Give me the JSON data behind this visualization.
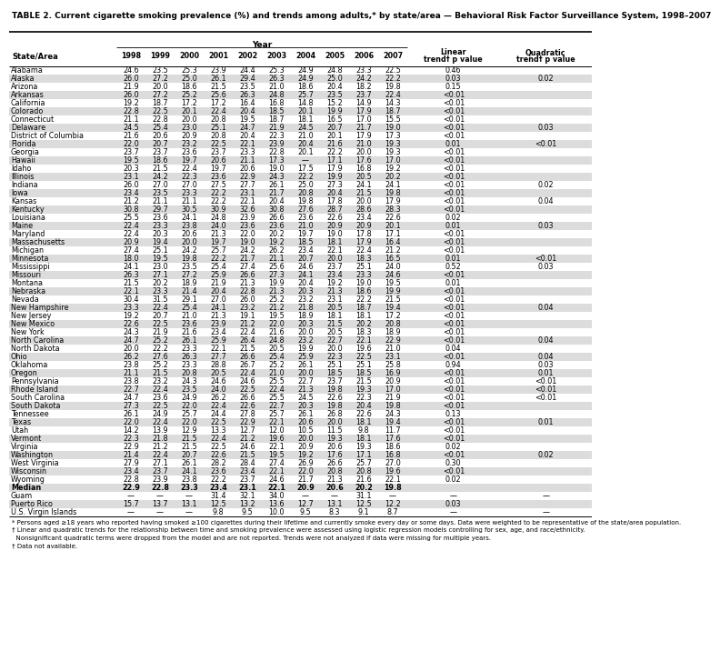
{
  "title": "TABLE 2. Current cigarette smoking prevalence (%) and trends among adults,* by state/area — Behavioral Risk Factor Surveillance System, 1998–2007",
  "col_headers": [
    "State/Area",
    "1998",
    "1999",
    "2000",
    "2001",
    "2002",
    "2003",
    "2004",
    "2005",
    "2006",
    "2007",
    "Linear\ntrend† p value",
    "Quadratic\ntrend† p value"
  ],
  "year_header": "Year",
  "rows": [
    [
      "Alabama",
      "24.6",
      "23.5",
      "25.3",
      "23.9",
      "24.4",
      "25.3",
      "24.9",
      "24.8",
      "23.3",
      "22.5",
      "0.46",
      ""
    ],
    [
      "Alaska",
      "26.0",
      "27.2",
      "25.0",
      "26.1",
      "29.4",
      "26.3",
      "24.9",
      "25.0",
      "24.2",
      "22.2",
      "0.03",
      "0.02"
    ],
    [
      "Arizona",
      "21.9",
      "20.0",
      "18.6",
      "21.5",
      "23.5",
      "21.0",
      "18.6",
      "20.4",
      "18.2",
      "19.8",
      "0.15",
      ""
    ],
    [
      "Arkansas",
      "26.0",
      "27.2",
      "25.2",
      "25.6",
      "26.3",
      "24.8",
      "25.7",
      "23.5",
      "23.7",
      "22.4",
      "<0.01",
      ""
    ],
    [
      "California",
      "19.2",
      "18.7",
      "17.2",
      "17.2",
      "16.4",
      "16.8",
      "14.8",
      "15.2",
      "14.9",
      "14.3",
      "<0.01",
      ""
    ],
    [
      "Colorado",
      "22.8",
      "22.5",
      "20.1",
      "22.4",
      "20.4",
      "18.5",
      "20.1",
      "19.9",
      "17.9",
      "18.7",
      "<0.01",
      ""
    ],
    [
      "Connecticut",
      "21.1",
      "22.8",
      "20.0",
      "20.8",
      "19.5",
      "18.7",
      "18.1",
      "16.5",
      "17.0",
      "15.5",
      "<0.01",
      ""
    ],
    [
      "Delaware",
      "24.5",
      "25.4",
      "23.0",
      "25.1",
      "24.7",
      "21.9",
      "24.5",
      "20.7",
      "21.7",
      "19.0",
      "<0.01",
      "0.03"
    ],
    [
      "District of Columbia",
      "21.6",
      "20.6",
      "20.9",
      "20.8",
      "20.4",
      "22.3",
      "21.0",
      "20.1",
      "17.9",
      "17.3",
      "<0.01",
      ""
    ],
    [
      "Florida",
      "22.0",
      "20.7",
      "23.2",
      "22.5",
      "22.1",
      "23.9",
      "20.4",
      "21.6",
      "21.0",
      "19.3",
      "0.01",
      "<0.01"
    ],
    [
      "Georgia",
      "23.7",
      "23.7",
      "23.6",
      "23.7",
      "23.3",
      "22.8",
      "20.1",
      "22.2",
      "20.0",
      "19.3",
      "<0.01",
      ""
    ],
    [
      "Hawaii",
      "19.5",
      "18.6",
      "19.7",
      "20.6",
      "21.1",
      "17.3",
      "—",
      "17.1",
      "17.6",
      "17.0",
      "<0.01",
      ""
    ],
    [
      "Idaho",
      "20.3",
      "21.5",
      "22.4",
      "19.7",
      "20.6",
      "19.0",
      "17.5",
      "17.9",
      "16.8",
      "19.2",
      "<0.01",
      ""
    ],
    [
      "Illinois",
      "23.1",
      "24.2",
      "22.3",
      "23.6",
      "22.9",
      "24.3",
      "22.2",
      "19.9",
      "20.5",
      "20.2",
      "<0.01",
      ""
    ],
    [
      "Indiana",
      "26.0",
      "27.0",
      "27.0",
      "27.5",
      "27.7",
      "26.1",
      "25.0",
      "27.3",
      "24.1",
      "24.1",
      "<0.01",
      "0.02"
    ],
    [
      "Iowa",
      "23.4",
      "23.5",
      "23.3",
      "22.2",
      "23.1",
      "21.7",
      "20.8",
      "20.4",
      "21.5",
      "19.8",
      "<0.01",
      ""
    ],
    [
      "Kansas",
      "21.2",
      "21.1",
      "21.1",
      "22.2",
      "22.1",
      "20.4",
      "19.8",
      "17.8",
      "20.0",
      "17.9",
      "<0.01",
      "0.04"
    ],
    [
      "Kentucky",
      "30.8",
      "29.7",
      "30.5",
      "30.9",
      "32.6",
      "30.8",
      "27.6",
      "28.7",
      "28.6",
      "28.3",
      "<0.01",
      ""
    ],
    [
      "Louisiana",
      "25.5",
      "23.6",
      "24.1",
      "24.8",
      "23.9",
      "26.6",
      "23.6",
      "22.6",
      "23.4",
      "22.6",
      "0.02",
      ""
    ],
    [
      "Maine",
      "22.4",
      "23.3",
      "23.8",
      "24.0",
      "23.6",
      "23.6",
      "21.0",
      "20.9",
      "20.9",
      "20.1",
      "0.01",
      "0.03"
    ],
    [
      "Maryland",
      "22.4",
      "20.3",
      "20.6",
      "21.3",
      "22.0",
      "20.2",
      "19.7",
      "19.0",
      "17.8",
      "17.1",
      "<0.01",
      ""
    ],
    [
      "Massachusetts",
      "20.9",
      "19.4",
      "20.0",
      "19.7",
      "19.0",
      "19.2",
      "18.5",
      "18.1",
      "17.9",
      "16.4",
      "<0.01",
      ""
    ],
    [
      "Michigan",
      "27.4",
      "25.1",
      "24.2",
      "25.7",
      "24.2",
      "26.2",
      "23.4",
      "22.1",
      "22.4",
      "21.2",
      "<0.01",
      ""
    ],
    [
      "Minnesota",
      "18.0",
      "19.5",
      "19.8",
      "22.2",
      "21.7",
      "21.1",
      "20.7",
      "20.0",
      "18.3",
      "16.5",
      "0.01",
      "<0.01"
    ],
    [
      "Mississippi",
      "24.1",
      "23.0",
      "23.5",
      "25.4",
      "27.4",
      "25.6",
      "24.6",
      "23.7",
      "25.1",
      "24.0",
      "0.52",
      "0.03"
    ],
    [
      "Missouri",
      "26.3",
      "27.1",
      "27.2",
      "25.9",
      "26.6",
      "27.3",
      "24.1",
      "23.4",
      "23.3",
      "24.6",
      "<0.01",
      ""
    ],
    [
      "Montana",
      "21.5",
      "20.2",
      "18.9",
      "21.9",
      "21.3",
      "19.9",
      "20.4",
      "19.2",
      "19.0",
      "19.5",
      "0.01",
      ""
    ],
    [
      "Nebraska",
      "22.1",
      "23.3",
      "21.4",
      "20.4",
      "22.8",
      "21.3",
      "20.3",
      "21.3",
      "18.6",
      "19.9",
      "<0.01",
      ""
    ],
    [
      "Nevada",
      "30.4",
      "31.5",
      "29.1",
      "27.0",
      "26.0",
      "25.2",
      "23.2",
      "23.1",
      "22.2",
      "21.5",
      "<0.01",
      ""
    ],
    [
      "New Hampshire",
      "23.3",
      "22.4",
      "25.4",
      "24.1",
      "23.2",
      "21.2",
      "21.8",
      "20.5",
      "18.7",
      "19.4",
      "<0.01",
      "0.04"
    ],
    [
      "New Jersey",
      "19.2",
      "20.7",
      "21.0",
      "21.3",
      "19.1",
      "19.5",
      "18.9",
      "18.1",
      "18.1",
      "17.2",
      "<0.01",
      ""
    ],
    [
      "New Mexico",
      "22.6",
      "22.5",
      "23.6",
      "23.9",
      "21.2",
      "22.0",
      "20.3",
      "21.5",
      "20.2",
      "20.8",
      "<0.01",
      ""
    ],
    [
      "New York",
      "24.3",
      "21.9",
      "21.6",
      "23.4",
      "22.4",
      "21.6",
      "20.0",
      "20.5",
      "18.3",
      "18.9",
      "<0.01",
      ""
    ],
    [
      "North Carolina",
      "24.7",
      "25.2",
      "26.1",
      "25.9",
      "26.4",
      "24.8",
      "23.2",
      "22.7",
      "22.1",
      "22.9",
      "<0.01",
      "0.04"
    ],
    [
      "North Dakota",
      "20.0",
      "22.2",
      "23.3",
      "22.1",
      "21.5",
      "20.5",
      "19.9",
      "20.0",
      "19.6",
      "21.0",
      "0.04",
      ""
    ],
    [
      "Ohio",
      "26.2",
      "27.6",
      "26.3",
      "27.7",
      "26.6",
      "25.4",
      "25.9",
      "22.3",
      "22.5",
      "23.1",
      "<0.01",
      "0.04"
    ],
    [
      "Oklahoma",
      "23.8",
      "25.2",
      "23.3",
      "28.8",
      "26.7",
      "25.2",
      "26.1",
      "25.1",
      "25.1",
      "25.8",
      "0.94",
      "0.03"
    ],
    [
      "Oregon",
      "21.1",
      "21.5",
      "20.8",
      "20.5",
      "22.4",
      "21.0",
      "20.0",
      "18.5",
      "18.5",
      "16.9",
      "<0.01",
      "0.01"
    ],
    [
      "Pennsylvania",
      "23.8",
      "23.2",
      "24.3",
      "24.6",
      "24.6",
      "25.5",
      "22.7",
      "23.7",
      "21.5",
      "20.9",
      "<0.01",
      "<0.01"
    ],
    [
      "Rhode Island",
      "22.7",
      "22.4",
      "23.5",
      "24.0",
      "22.5",
      "22.4",
      "21.3",
      "19.8",
      "19.3",
      "17.0",
      "<0.01",
      "<0.01"
    ],
    [
      "South Carolina",
      "24.7",
      "23.6",
      "24.9",
      "26.2",
      "26.6",
      "25.5",
      "24.5",
      "22.6",
      "22.3",
      "21.9",
      "<0.01",
      "<0.01"
    ],
    [
      "South Dakota",
      "27.3",
      "22.5",
      "22.0",
      "22.4",
      "22.6",
      "22.7",
      "20.3",
      "19.8",
      "20.4",
      "19.8",
      "<0.01",
      ""
    ],
    [
      "Tennessee",
      "26.1",
      "24.9",
      "25.7",
      "24.4",
      "27.8",
      "25.7",
      "26.1",
      "26.8",
      "22.6",
      "24.3",
      "0.13",
      ""
    ],
    [
      "Texas",
      "22.0",
      "22.4",
      "22.0",
      "22.5",
      "22.9",
      "22.1",
      "20.6",
      "20.0",
      "18.1",
      "19.4",
      "<0.01",
      "0.01"
    ],
    [
      "Utah",
      "14.2",
      "13.9",
      "12.9",
      "13.3",
      "12.7",
      "12.0",
      "10.5",
      "11.5",
      "9.8",
      "11.7",
      "<0.01",
      ""
    ],
    [
      "Vermont",
      "22.3",
      "21.8",
      "21.5",
      "22.4",
      "21.2",
      "19.6",
      "20.0",
      "19.3",
      "18.1",
      "17.6",
      "<0.01",
      ""
    ],
    [
      "Virginia",
      "22.9",
      "21.2",
      "21.5",
      "22.5",
      "24.6",
      "22.1",
      "20.9",
      "20.6",
      "19.3",
      "18.6",
      "0.02",
      ""
    ],
    [
      "Washington",
      "21.4",
      "22.4",
      "20.7",
      "22.6",
      "21.5",
      "19.5",
      "19.2",
      "17.6",
      "17.1",
      "16.8",
      "<0.01",
      "0.02"
    ],
    [
      "West Virginia",
      "27.9",
      "27.1",
      "26.1",
      "28.2",
      "28.4",
      "27.4",
      "26.9",
      "26.6",
      "25.7",
      "27.0",
      "0.30",
      ""
    ],
    [
      "Wisconsin",
      "23.4",
      "23.7",
      "24.1",
      "23.6",
      "23.4",
      "22.1",
      "22.0",
      "20.8",
      "20.8",
      "19.6",
      "<0.01",
      ""
    ],
    [
      "Wyoming",
      "22.8",
      "23.9",
      "23.8",
      "22.2",
      "23.7",
      "24.6",
      "21.7",
      "21.3",
      "21.6",
      "22.1",
      "0.02",
      ""
    ],
    [
      "Median",
      "22.9",
      "22.8",
      "23.3",
      "23.4",
      "23.1",
      "22.1",
      "20.9",
      "20.6",
      "20.2",
      "19.8",
      "",
      ""
    ],
    [
      "Guam",
      "—",
      "—",
      "—",
      "31.4",
      "32.1",
      "34.0",
      "—",
      "—",
      "31.1",
      "—",
      "—",
      "—"
    ],
    [
      "Puerto Rico",
      "15.7",
      "13.7",
      "13.1",
      "12.5",
      "13.2",
      "13.6",
      "12.7",
      "13.1",
      "12.5",
      "12.2",
      "0.03",
      ""
    ],
    [
      "U.S. Virgin Islands",
      "—",
      "—",
      "—",
      "9.8",
      "9.5",
      "10.0",
      "9.5",
      "8.3",
      "9.1",
      "8.7",
      "—",
      "—"
    ]
  ],
  "footnotes": [
    "* Persons aged ≥18 years who reported having smoked ≥100 cigarettes during their lifetime and currently smoke every day or some days. Data were weighted to be representative",
    "  of the state/area population.",
    "† Linear and quadratic trends for the relationship between time and smoking prevalence were assessed using logistic regression models controlling for sex, age, and race/ethnicity.",
    "  Nonsignificant quadratic terms were dropped from the model and are not reported. Trends were not analyzed if data were missing for multiple years.",
    "† Data not available."
  ],
  "bg_color": "#FFFFFF",
  "alt_row_color": "#DCDCDC",
  "bold_rows": [
    "Median"
  ]
}
